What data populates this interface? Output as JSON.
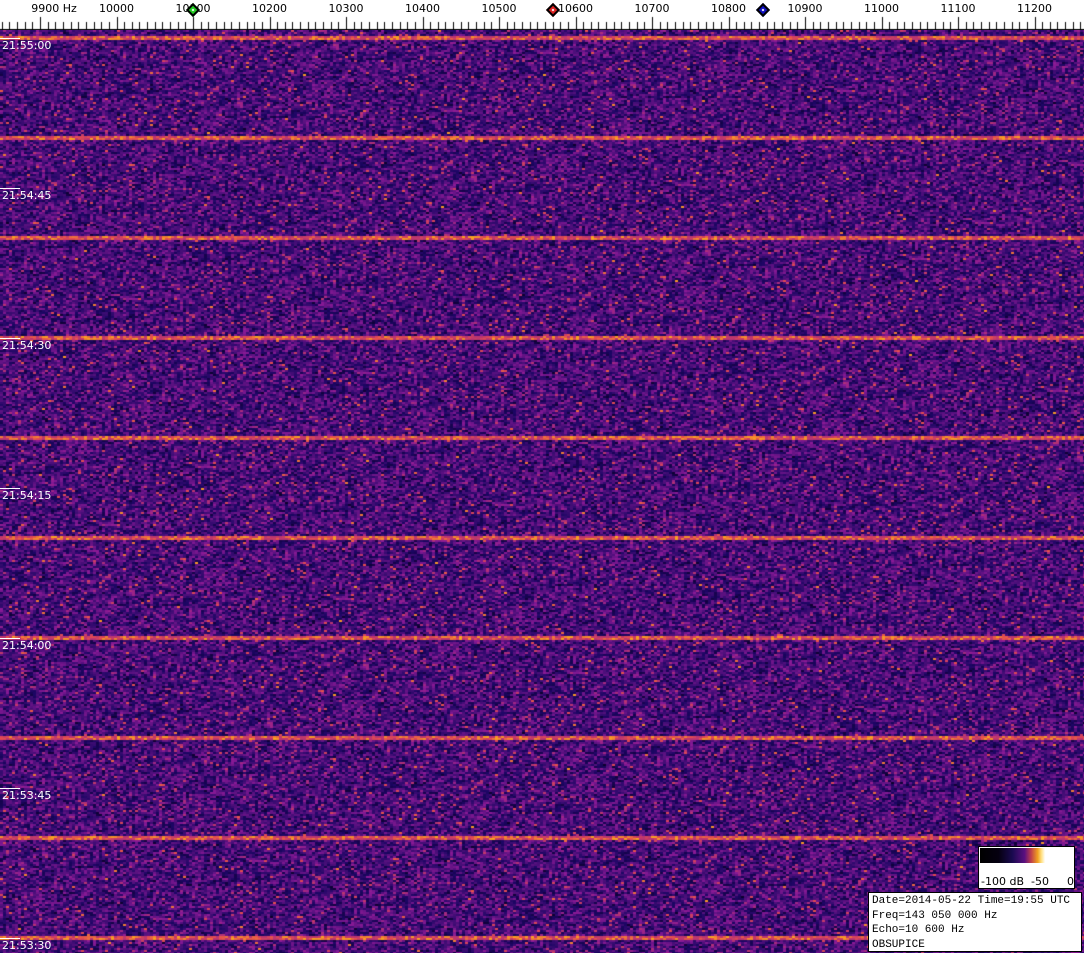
{
  "chart_data": {
    "type": "heatmap",
    "title": "",
    "x_axis": {
      "unit": "Hz",
      "range": [
        9850,
        11260
      ],
      "tick_labels": [
        "9900 Hz",
        "10000",
        "10100",
        "10200",
        "10300",
        "10400",
        "10500",
        "10600",
        "10700",
        "10800",
        "10900",
        "11000",
        "11100",
        "11200"
      ],
      "ticks": [
        9900,
        10000,
        10100,
        10200,
        10300,
        10400,
        10500,
        10600,
        10700,
        10800,
        10900,
        11000,
        11100,
        11200
      ]
    },
    "y_axis": {
      "range": [
        "21:55:03",
        "21:53:30"
      ],
      "tick_labels": [
        "21:55:00",
        "21:54:45",
        "21:54:30",
        "21:54:15",
        "21:54:00",
        "21:53:45",
        "21:53:30"
      ]
    },
    "color_scale": {
      "unit": "dB",
      "range": [
        -100,
        0
      ],
      "labels": [
        "-100 dB",
        "-50",
        "0"
      ]
    },
    "markers": [
      {
        "frequency": 10100,
        "color": "#22cc22"
      },
      {
        "frequency": 10570,
        "color": "#dd2222"
      },
      {
        "frequency": 10845,
        "color": "#1010c0"
      }
    ],
    "periodic_signal_interval_s": 10,
    "background_color": "#3a1470",
    "signal_color": "#f0a020"
  },
  "info": {
    "line1": "Date=2014-05-22 Time=19:55 UTC",
    "line2": "Freq=143 050 000 Hz",
    "line3": "Echo=10 600 Hz",
    "line4": "OBSUPICE"
  }
}
